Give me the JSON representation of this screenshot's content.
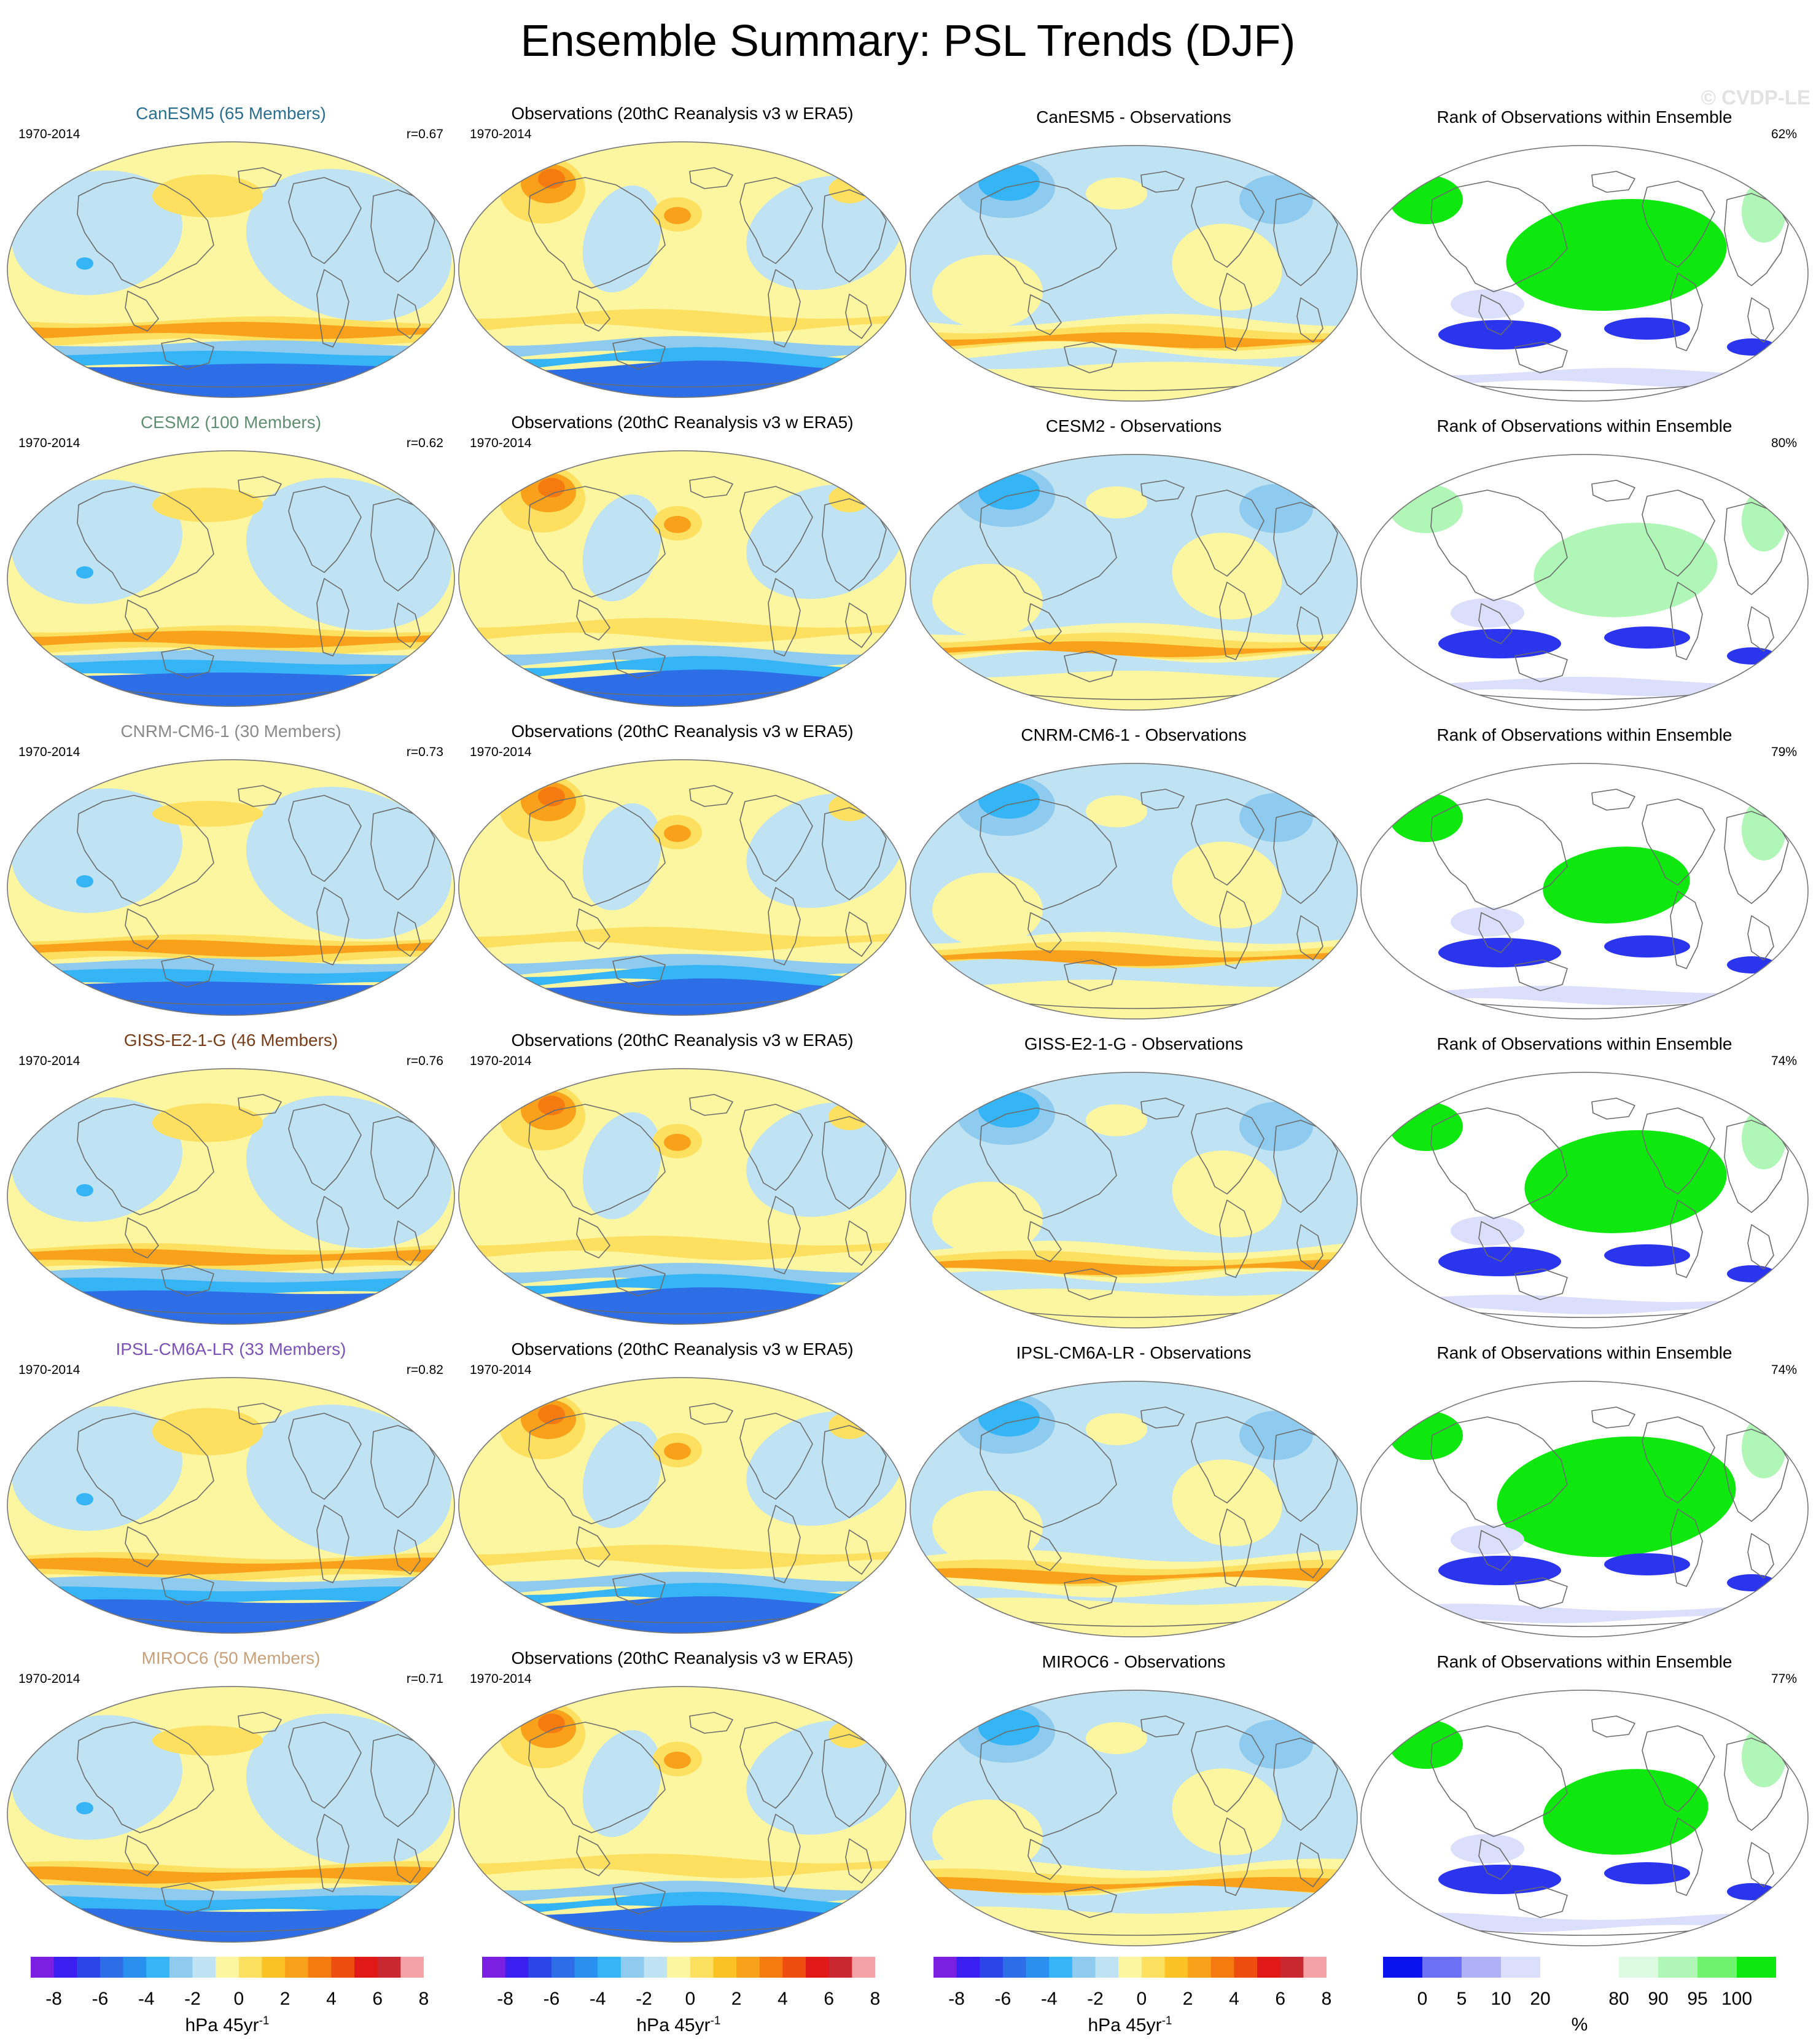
{
  "title": "Ensemble Summary: PSL Trends (DJF)",
  "watermark": "© CVDP-LE",
  "period": "1970-2014",
  "rows": [
    {
      "model_title": "CanESM5 (65 Members)",
      "color": "#2a6f8f",
      "r": "r=0.67",
      "obs_title": "Observations (20thC Reanalysis v3 w ERA5)",
      "diff_title": "CanESM5 - Observations",
      "rank_title": "Rank of Observations within Ensemble",
      "rank_pct": "62%"
    },
    {
      "model_title": "CESM2 (100 Members)",
      "color": "#5f8f72",
      "r": "r=0.62",
      "obs_title": "Observations (20thC Reanalysis v3 w ERA5)",
      "diff_title": "CESM2 - Observations",
      "rank_title": "Rank of Observations within Ensemble",
      "rank_pct": "80%"
    },
    {
      "model_title": "CNRM-CM6-1 (30 Members)",
      "color": "#8a8a8a",
      "r": "r=0.73",
      "obs_title": "Observations (20thC Reanalysis v3 w ERA5)",
      "diff_title": "CNRM-CM6-1 - Observations",
      "rank_title": "Rank of Observations within Ensemble",
      "rank_pct": "79%"
    },
    {
      "model_title": "GISS-E2-1-G (46 Members)",
      "color": "#7a3d1a",
      "r": "r=0.76",
      "obs_title": "Observations (20thC Reanalysis v3 w ERA5)",
      "diff_title": "GISS-E2-1-G - Observations",
      "rank_title": "Rank of Observations within Ensemble",
      "rank_pct": "74%"
    },
    {
      "model_title": "IPSL-CM6A-LR (33 Members)",
      "color": "#7b52b8",
      "r": "r=0.82",
      "obs_title": "Observations (20thC Reanalysis v3 w ERA5)",
      "diff_title": "IPSL-CM6A-LR - Observations",
      "rank_title": "Rank of Observations within Ensemble",
      "rank_pct": "74%"
    },
    {
      "model_title": "MIROC6 (50 Members)",
      "color": "#c8a07a",
      "r": "r=0.71",
      "obs_title": "Observations (20thC Reanalysis v3 w ERA5)",
      "diff_title": "MIROC6 - Observations",
      "rank_title": "Rank of Observations within Ensemble",
      "rank_pct": "77%"
    }
  ],
  "colorbars": {
    "trend": {
      "colors": [
        "#7b1fe0",
        "#3a1ff0",
        "#2b45e8",
        "#2d6ee6",
        "#2a90f0",
        "#35b5f5",
        "#8fcbee",
        "#bfe3f3",
        "#fdf6a0",
        "#fde060",
        "#fbc226",
        "#f9a11a",
        "#f57b10",
        "#ee4d10",
        "#e01818",
        "#c8282f",
        "#f4a2a6"
      ],
      "ticks": [
        "-8",
        "-6",
        "-4",
        "-2",
        "0",
        "2",
        "4",
        "6",
        "8"
      ],
      "units": "hPa 45yr",
      "units_sup": "-1"
    },
    "rank": {
      "colors": [
        "#0a12ee",
        "#6b70f4",
        "#aeb1f6",
        "#dcdffb",
        "#ffffff",
        "#ffffff",
        "#dcfbe0",
        "#b0f6b6",
        "#6ff26e",
        "#0ee80e"
      ],
      "ticks": [
        "0",
        "5",
        "10",
        "20",
        "80",
        "90",
        "95",
        "100"
      ],
      "units": "%"
    }
  },
  "map_colors": {
    "ocean_blue": "#bfe3f3",
    "pale_yellow": "#fdf6a0",
    "yellow": "#fde060",
    "orange": "#f9a11a",
    "dark_orange": "#f57b10",
    "blue": "#8fcbee",
    "mid_blue": "#35b5f5",
    "deep_blue": "#2d6ee6",
    "rank_green": "#0ee80e",
    "rank_light_green": "#b0f6b6",
    "rank_blue": "#2b35ee",
    "rank_light_blue": "#dcdffb",
    "coast": "#6b6b6b"
  }
}
